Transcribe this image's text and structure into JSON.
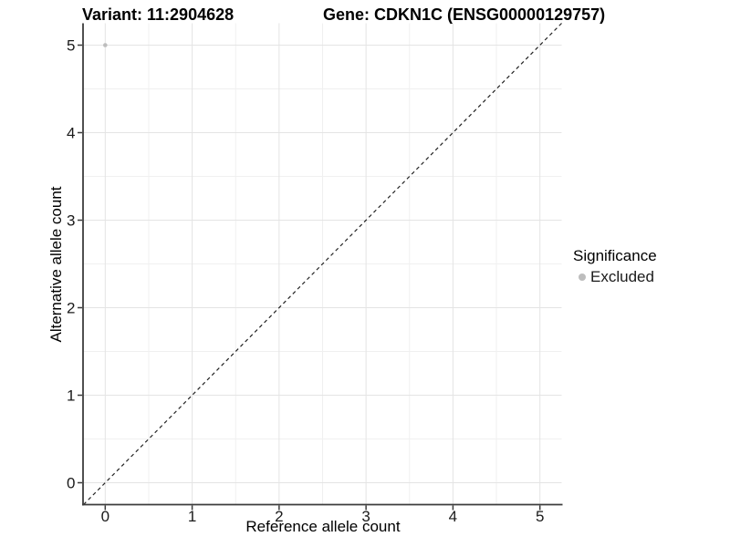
{
  "chart_data": {
    "type": "scatter",
    "title_left": "Variant: 11:2904628",
    "title_right": "Gene: CDKN1C (ENSG00000129757)",
    "xlabel": "Reference allele count",
    "ylabel": "Alternative allele count",
    "xlim": [
      -0.25,
      5.25
    ],
    "ylim": [
      -0.25,
      5.25
    ],
    "x_ticks": [
      0,
      1,
      2,
      3,
      4,
      5
    ],
    "y_ticks": [
      0,
      1,
      2,
      3,
      4,
      5
    ],
    "x_minor_ticks": [
      0.5,
      1.5,
      2.5,
      3.5,
      4.5
    ],
    "y_minor_ticks": [
      0.5,
      1.5,
      2.5,
      3.5,
      4.5
    ],
    "grid": true,
    "points": [
      {
        "x": 0,
        "y": 5,
        "series": "Excluded"
      }
    ],
    "reference_line": {
      "type": "identity",
      "style": "dashed",
      "from": [
        -0.25,
        -0.25
      ],
      "to": [
        5.25,
        5.25
      ]
    },
    "legend": {
      "title": "Significance",
      "position": "right",
      "entries": [
        {
          "label": "Excluded",
          "color": "#bdbdbd",
          "marker": "circle"
        }
      ]
    },
    "colors": {
      "point": "#bdbdbd",
      "grid_major": "#e4e4e4",
      "grid_minor": "#f0f0f0",
      "axis": "#3c3c3c",
      "reference_line": "#222222",
      "tick_text": "#1a1a1a"
    }
  }
}
